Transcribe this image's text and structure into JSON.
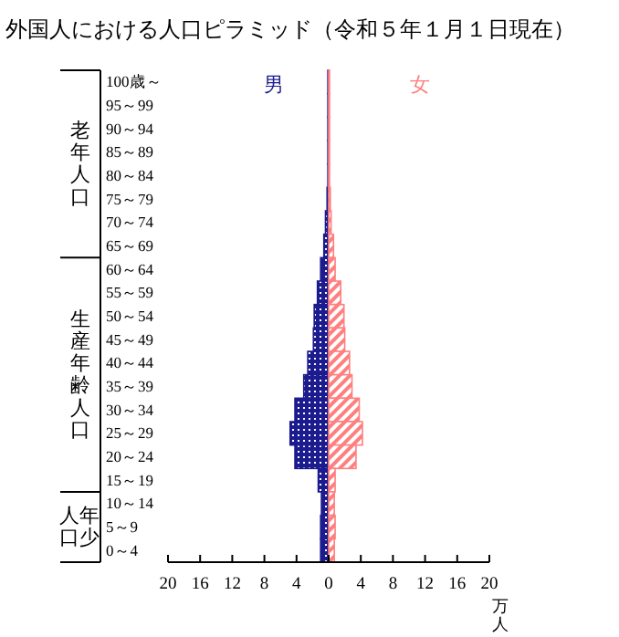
{
  "chart_data": {
    "type": "bar",
    "orientation": "horizontal",
    "stacked": true,
    "title": "外国人における人口ピラミッド（令和５年１月１日現在）",
    "xlabel": "万人",
    "categories": [
      "100歳～",
      "95～99",
      "90～94",
      "85～89",
      "80～84",
      "75～79",
      "70～74",
      "65～69",
      "60～64",
      "55～59",
      "50～54",
      "45～49",
      "40～44",
      "35～39",
      "30～34",
      "25～29",
      "20～24",
      "15～19",
      "10～14",
      "5～9",
      "0～4"
    ],
    "series": [
      {
        "name": "男",
        "color": "#1c1c8f",
        "values": [
          -0.1,
          -0.1,
          -0.1,
          -0.1,
          -0.1,
          -0.2,
          -0.4,
          -0.6,
          -1.0,
          -1.4,
          -1.8,
          -1.9,
          -2.6,
          -3.1,
          -4.2,
          -4.8,
          -4.2,
          -1.3,
          -0.9,
          -1.0,
          -1.0
        ]
      },
      {
        "name": "女",
        "color": "#ff7f7f",
        "values": [
          0.1,
          0.1,
          0.1,
          0.1,
          0.1,
          0.2,
          0.3,
          0.6,
          0.8,
          1.5,
          1.9,
          2.0,
          2.6,
          2.9,
          3.8,
          4.2,
          3.4,
          0.8,
          0.7,
          0.8,
          0.7
        ]
      }
    ],
    "xlim": [
      -20,
      20
    ],
    "xticks": [
      {
        "value": -20,
        "label": "20"
      },
      {
        "value": -16,
        "label": "16"
      },
      {
        "value": -12,
        "label": "12"
      },
      {
        "value": -8,
        "label": "8"
      },
      {
        "value": -4,
        "label": "4"
      },
      0,
      4,
      8,
      12,
      16,
      20
    ],
    "annotations": [
      "老年人口",
      "生産年齢人口",
      "年少人口"
    ]
  }
}
